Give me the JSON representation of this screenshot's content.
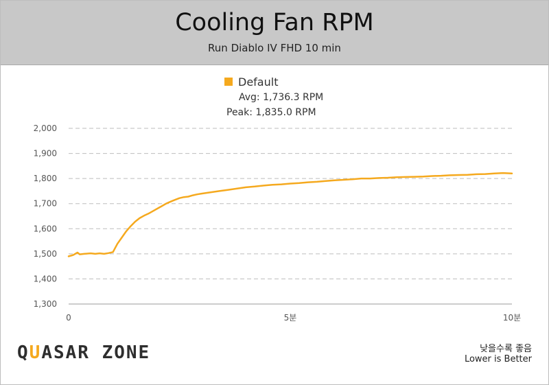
{
  "header": {
    "title": "Cooling Fan RPM",
    "subtitle": "Run Diablo IV FHD 10 min"
  },
  "legend": {
    "label": "Default",
    "avg": "Avg: 1,736.3 RPM",
    "peak": "Peak: 1,835.0 RPM"
  },
  "footer": {
    "logo_left": "Q",
    "logo_accent": "U",
    "logo_right": "ASAR ZONE",
    "note_ko": "낮을수록 좋음",
    "note_en": "Lower is Better"
  },
  "colors": {
    "series": "#f5a91e",
    "header_bg": "#c8c8c8",
    "grid": "#bdbdbd"
  },
  "chart_data": {
    "type": "line",
    "title": "Cooling Fan RPM",
    "subtitle": "Run Diablo IV FHD 10 min",
    "xlabel": "",
    "ylabel": "",
    "xlim": [
      0,
      10
    ],
    "ylim": [
      1300,
      2000
    ],
    "x_ticks": [
      {
        "value": 0,
        "label": "0"
      },
      {
        "value": 5,
        "label": "5분"
      },
      {
        "value": 10,
        "label": "10분"
      }
    ],
    "y_ticks": [
      {
        "value": 1300,
        "label": "1,300"
      },
      {
        "value": 1400,
        "label": "1,400"
      },
      {
        "value": 1500,
        "label": "1,500"
      },
      {
        "value": 1600,
        "label": "1,600"
      },
      {
        "value": 1700,
        "label": "1,700"
      },
      {
        "value": 1800,
        "label": "1,800"
      },
      {
        "value": 1900,
        "label": "1,900"
      },
      {
        "value": 2000,
        "label": "2,000"
      }
    ],
    "grid": true,
    "legend_position": "top-center",
    "series": [
      {
        "name": "Default",
        "color": "#f5a91e",
        "x": [
          0,
          0.1,
          0.2,
          0.25,
          0.35,
          0.5,
          0.6,
          0.7,
          0.8,
          0.9,
          1.0,
          1.1,
          1.2,
          1.3,
          1.4,
          1.5,
          1.6,
          1.7,
          1.8,
          1.9,
          2.0,
          2.1,
          2.2,
          2.3,
          2.4,
          2.5,
          2.6,
          2.7,
          2.8,
          2.9,
          3.0,
          3.2,
          3.4,
          3.6,
          3.8,
          4.0,
          4.2,
          4.4,
          4.6,
          4.8,
          5.0,
          5.2,
          5.4,
          5.6,
          5.8,
          6.0,
          6.2,
          6.4,
          6.6,
          6.8,
          7.0,
          7.2,
          7.4,
          7.6,
          7.8,
          8.0,
          8.2,
          8.4,
          8.6,
          8.8,
          9.0,
          9.2,
          9.4,
          9.6,
          9.8,
          10.0
        ],
        "values": [
          1490,
          1495,
          1505,
          1498,
          1500,
          1502,
          1500,
          1502,
          1500,
          1503,
          1507,
          1540,
          1565,
          1590,
          1610,
          1628,
          1642,
          1652,
          1660,
          1670,
          1680,
          1690,
          1700,
          1708,
          1715,
          1722,
          1726,
          1728,
          1733,
          1737,
          1740,
          1745,
          1750,
          1755,
          1760,
          1765,
          1768,
          1772,
          1775,
          1777,
          1780,
          1782,
          1785,
          1787,
          1790,
          1793,
          1795,
          1797,
          1800,
          1800,
          1802,
          1803,
          1805,
          1806,
          1807,
          1808,
          1810,
          1811,
          1813,
          1814,
          1815,
          1817,
          1818,
          1820,
          1822,
          1820
        ]
      }
    ]
  }
}
